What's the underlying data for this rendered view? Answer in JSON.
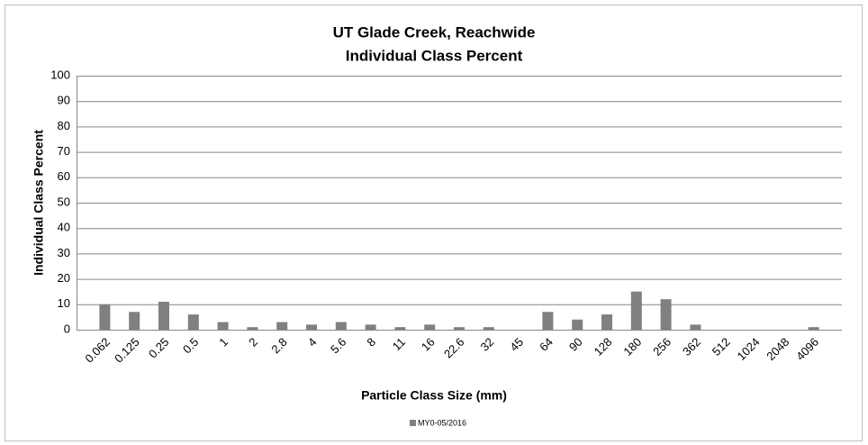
{
  "chart_data": {
    "type": "bar",
    "title": "UT Glade Creek, Reachwide",
    "subtitle": "Individual Class Percent",
    "x_label": "Particle Class Size (mm)",
    "y_label": "Individual Class Percent",
    "categories": [
      "0.062",
      "0.125",
      "0.25",
      "0.5",
      "1",
      "2",
      "2.8",
      "4",
      "5.6",
      "8",
      "11",
      "16",
      "22.6",
      "32",
      "45",
      "64",
      "90",
      "128",
      "180",
      "256",
      "362",
      "512",
      "1024",
      "2048",
      "4096"
    ],
    "series": [
      {
        "name": "MY0-05/2016",
        "color": "#808080",
        "values": [
          10,
          7,
          11,
          6,
          3,
          1,
          3,
          2,
          3,
          2,
          1,
          2,
          1,
          1,
          0,
          7,
          4,
          6,
          15,
          12,
          2,
          0,
          0,
          0,
          1
        ]
      }
    ],
    "ylim": [
      0,
      100
    ],
    "yticks": [
      0,
      10,
      20,
      30,
      40,
      50,
      60,
      70,
      80,
      90,
      100
    ],
    "grid": true,
    "legend": "bottom"
  }
}
